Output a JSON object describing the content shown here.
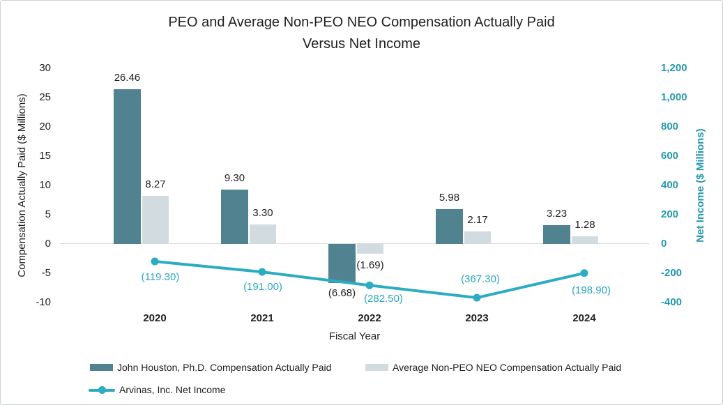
{
  "title": {
    "line1": "PEO and Average Non-PEO NEO Compensation Actually Paid",
    "line2": "Versus Net Income"
  },
  "chart_data": {
    "type": "combo bar+line, dual axis",
    "categories": [
      "2020",
      "2021",
      "2022",
      "2023",
      "2024"
    ],
    "x_axis_title": "Fiscal Year",
    "left_axis": {
      "title": "Compensation Actually Paid ($ Millions)",
      "min": -10,
      "max": 30,
      "tick_step": 5,
      "ticks": [
        "30",
        "25",
        "20",
        "15",
        "10",
        "5",
        "0",
        "-5",
        "-10"
      ]
    },
    "right_axis": {
      "title": "Net Income ($ Millions)",
      "min": -400,
      "max": 1200,
      "tick_step": 200,
      "ticks": [
        "1,200",
        "1,000",
        "800",
        "600",
        "400",
        "200",
        "0",
        "-200",
        "-400"
      ]
    },
    "series": [
      {
        "name": "John Houston, Ph.D. Compensation Actually Paid",
        "type": "bar",
        "axis": "left",
        "color": "#50838f",
        "values": [
          26.46,
          9.3,
          -6.68,
          5.98,
          3.23
        ],
        "data_labels": [
          "26.46",
          "9.30",
          "(6.68)",
          "5.98",
          "3.23"
        ]
      },
      {
        "name": "Average Non-PEO NEO Compensation Actually Paid",
        "type": "bar",
        "axis": "left",
        "color": "#d2dce0",
        "values": [
          8.27,
          3.3,
          -1.69,
          2.17,
          1.28
        ],
        "data_labels": [
          "8.27",
          "3.30",
          "(1.69)",
          "2.17",
          "1.28"
        ]
      },
      {
        "name": "Arvinas, Inc. Net Income",
        "type": "line",
        "axis": "right",
        "color": "#2bacc2",
        "values": [
          -119.3,
          -191.0,
          -282.5,
          -367.3,
          -198.9
        ],
        "data_labels": [
          "(119.30)",
          "(191.00)",
          "(282.50)",
          "(367.30)",
          "(198.90)"
        ],
        "label_offsets": [
          {
            "dx": 8,
            "dy": 23
          },
          {
            "dx": 1,
            "dy": 22
          },
          {
            "dx": 20,
            "dy": 20
          },
          {
            "dx": 5,
            "dy": -26
          },
          {
            "dx": 10,
            "dy": 25
          }
        ]
      }
    ],
    "legend_position": "bottom",
    "grid": false,
    "zero_line_color": "#d9d9d9"
  },
  "colors": {
    "bar_dark_teal": "#50838f",
    "bar_light_gray": "#d2dce0",
    "line_teal": "#2bacc2",
    "right_axis_text": "#2598af",
    "text_black": "#212121",
    "border": "#cbd1d8"
  }
}
